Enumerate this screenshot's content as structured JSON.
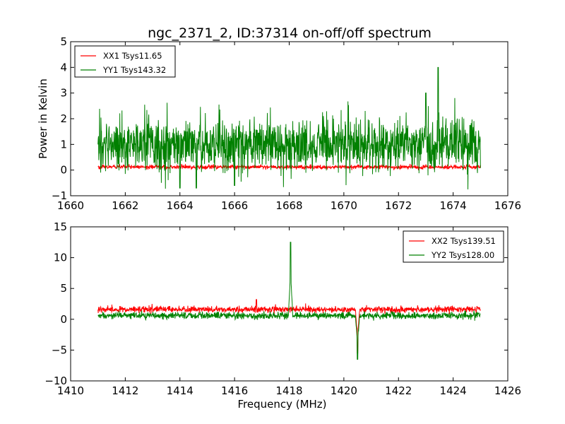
{
  "title": "ngc_2371_2, ID:37314 on-off/off spectrum",
  "chart_data": [
    {
      "type": "line",
      "ylabel": "Power in Kelvin",
      "xlabel": "",
      "xlim": [
        1660,
        1676
      ],
      "ylim": [
        -1,
        5
      ],
      "xticks": [
        "1660",
        "1662",
        "1664",
        "1666",
        "1668",
        "1670",
        "1672",
        "1674",
        "1676"
      ],
      "yticks": [
        "−1",
        "0",
        "1",
        "2",
        "3",
        "4",
        "5"
      ],
      "x_range": [
        1661,
        1675
      ],
      "legend_position": "top-left",
      "series": [
        {
          "name": "XX1 Tsys11.65",
          "color": "#ff0000",
          "baseline": 0.12,
          "noise": 0.07,
          "features": []
        },
        {
          "name": "YY1 Tsys143.32",
          "color": "#008000",
          "baseline": 1.0,
          "noise": 0.9,
          "features": [
            {
              "x": 1673.45,
              "y": 4.0
            },
            {
              "x": 1673.0,
              "y": 3.0
            },
            {
              "x": 1664.6,
              "y": -0.7
            },
            {
              "x": 1664.0,
              "y": -0.7
            },
            {
              "x": 1666.0,
              "y": -0.6
            }
          ]
        }
      ]
    },
    {
      "type": "line",
      "ylabel": "",
      "xlabel": "Frequency (MHz)",
      "xlim": [
        1410,
        1426
      ],
      "ylim": [
        -10,
        15
      ],
      "xticks": [
        "1410",
        "1412",
        "1414",
        "1416",
        "1418",
        "1420",
        "1422",
        "1424",
        "1426"
      ],
      "yticks": [
        "−10",
        "−5",
        "0",
        "5",
        "10",
        "15"
      ],
      "x_range": [
        1411,
        1425
      ],
      "legend_position": "top-right",
      "series": [
        {
          "name": "XX2 Tsys139.51",
          "color": "#ff0000",
          "baseline": 1.6,
          "noise": 0.45,
          "features": [
            {
              "x": 1416.8,
              "y": 3.2
            },
            {
              "x": 1420.5,
              "y": -5.5
            }
          ]
        },
        {
          "name": "YY2 Tsys128.00",
          "color": "#008000",
          "baseline": 0.6,
          "noise": 0.5,
          "features": [
            {
              "x": 1418.05,
              "y": 12.5
            },
            {
              "x": 1420.5,
              "y": -6.5
            }
          ]
        }
      ]
    }
  ]
}
